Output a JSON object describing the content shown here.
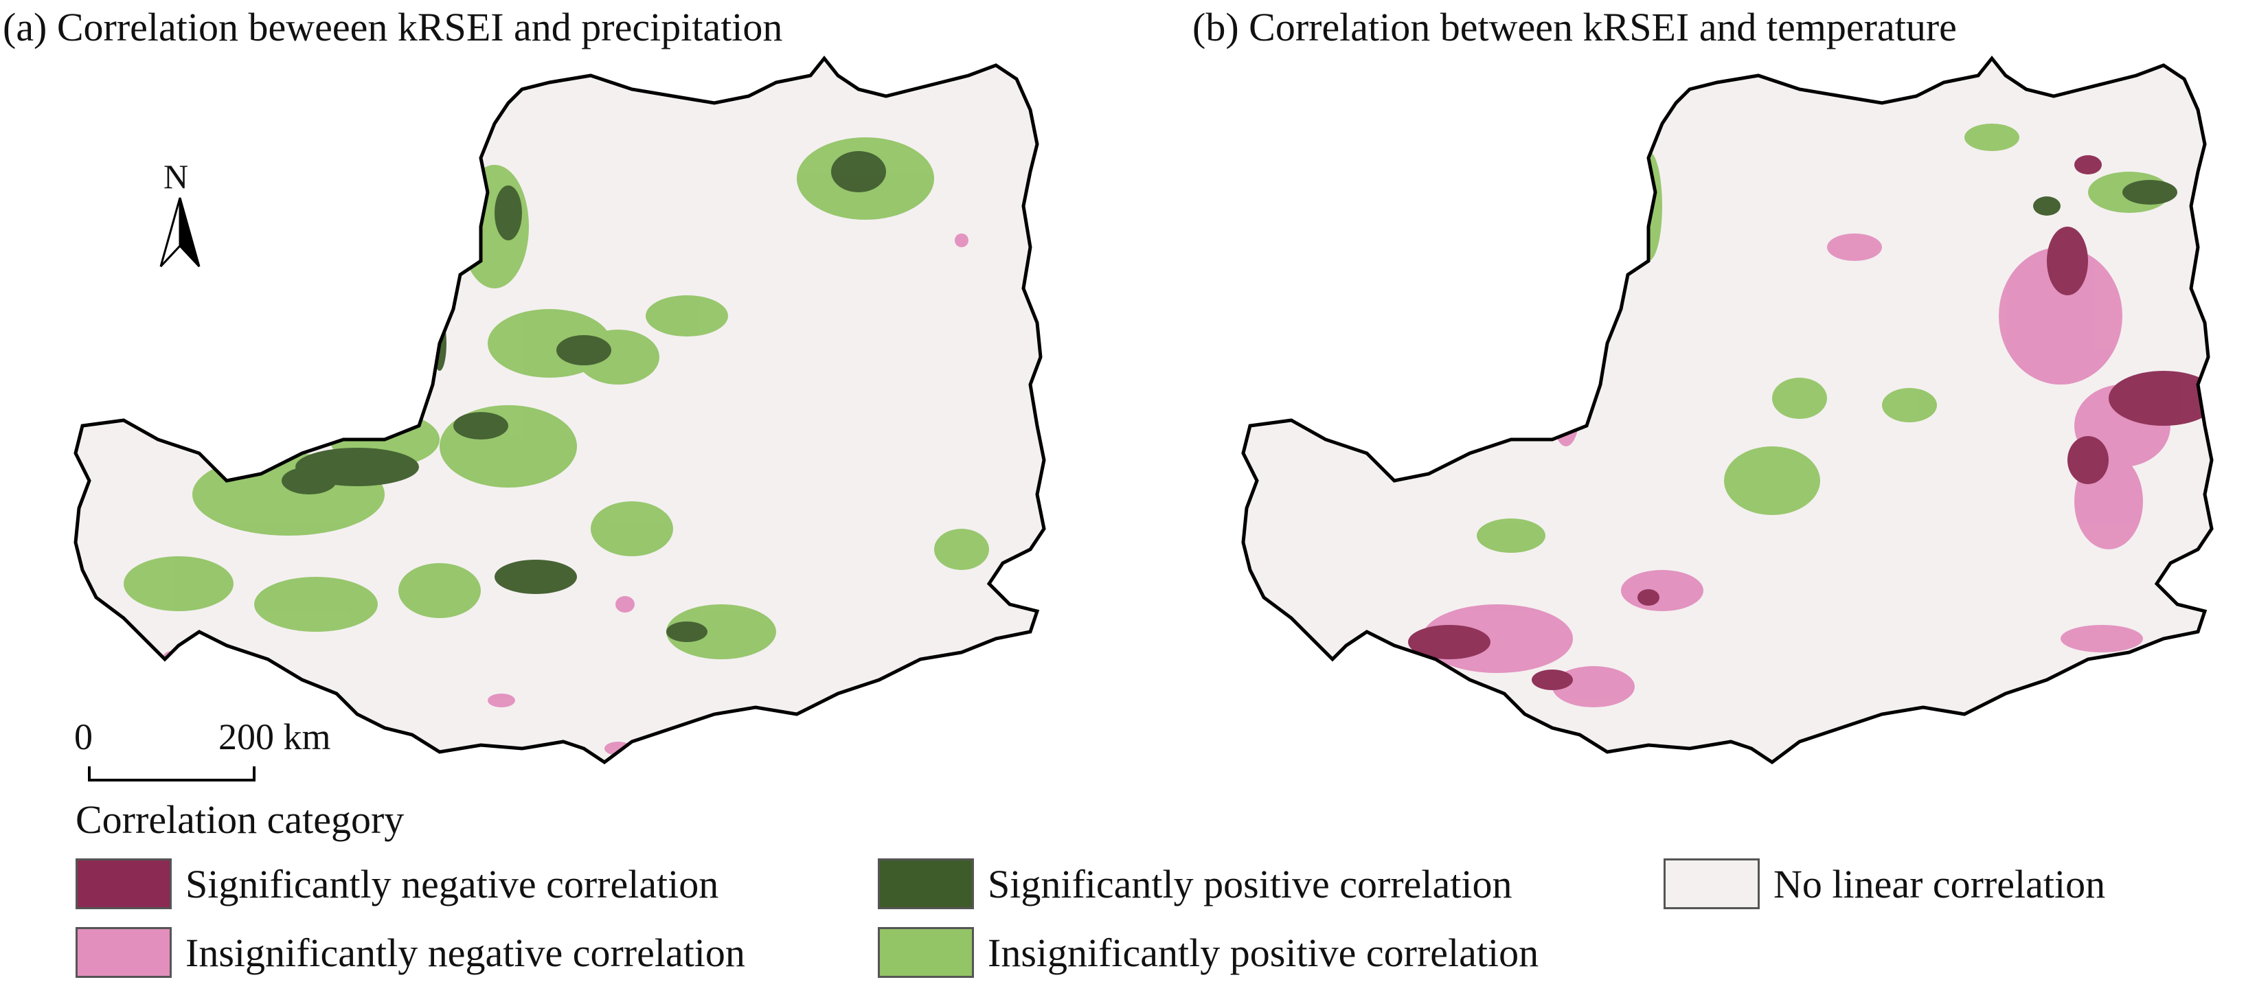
{
  "panels": [
    {
      "id": "a",
      "title": "(a) Correlation beweeen kRSEI and precipitation"
    },
    {
      "id": "b",
      "title": "(b) Correlation between kRSEI and temperature"
    }
  ],
  "north_arrow": {
    "label": "N"
  },
  "scale_bar": {
    "start": "0",
    "end": "200 km"
  },
  "legend": {
    "title": "Correlation category",
    "items": [
      {
        "label": "Significantly negative correlation",
        "color": "#8b2a52"
      },
      {
        "label": "Significantly positive correlation",
        "color": "#3e5c2a"
      },
      {
        "label": "No linear correlation",
        "color": "#f4f0f0"
      },
      {
        "label": "Insignificantly negative correlation",
        "color": "#e28fbd"
      },
      {
        "label": "Insignificantly positive correlation",
        "color": "#93c466"
      }
    ]
  },
  "colors": {
    "region_fill": "#f4f0f0",
    "boundary": "#000000",
    "sig_neg": "#8b2a52",
    "insig_neg": "#e28fbd",
    "sig_pos": "#3e5c2a",
    "insig_pos": "#93c466"
  }
}
